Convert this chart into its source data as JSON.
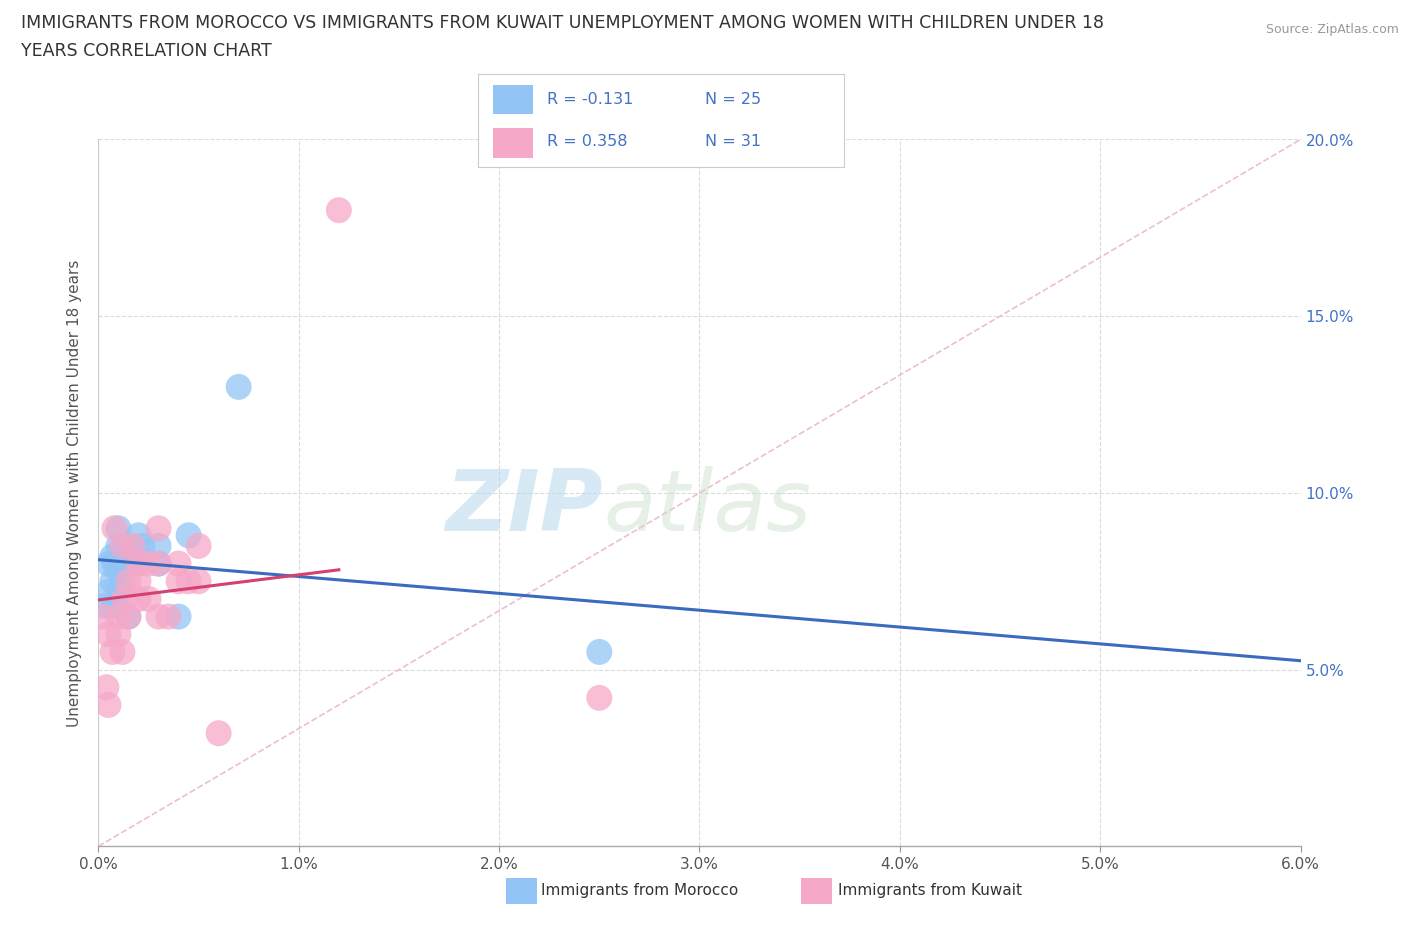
{
  "title_line1": "IMMIGRANTS FROM MOROCCO VS IMMIGRANTS FROM KUWAIT UNEMPLOYMENT AMONG WOMEN WITH CHILDREN UNDER 18",
  "title_line2": "YEARS CORRELATION CHART",
  "source": "Source: ZipAtlas.com",
  "ylabel": "Unemployment Among Women with Children Under 18 years",
  "xlabel_morocco": "Immigrants from Morocco",
  "xlabel_kuwait": "Immigrants from Kuwait",
  "xlim": [
    0.0,
    0.06
  ],
  "ylim": [
    0.0,
    0.2
  ],
  "xticks": [
    0.0,
    0.01,
    0.02,
    0.03,
    0.04,
    0.05,
    0.06
  ],
  "yticks": [
    0.0,
    0.05,
    0.1,
    0.15,
    0.2
  ],
  "xtick_labels": [
    "0.0%",
    "1.0%",
    "2.0%",
    "3.0%",
    "4.0%",
    "5.0%",
    "6.0%"
  ],
  "ytick_labels": [
    "",
    "5.0%",
    "10.0%",
    "15.0%",
    "20.0%"
  ],
  "legend_r_morocco": "R = -0.131",
  "legend_n_morocco": "N = 25",
  "legend_r_kuwait": "R = 0.358",
  "legend_n_kuwait": "N = 31",
  "color_morocco": "#92c5f5",
  "color_kuwait": "#f5a8c8",
  "trendline_morocco_color": "#3a6bbf",
  "trendline_kuwait_color": "#d44070",
  "ref_line_color": "#e8b0c0",
  "watermark_zip": "ZIP",
  "watermark_atlas": "atlas",
  "background_color": "#ffffff",
  "grid_color": "#cccccc",
  "morocco_x": [
    0.0003,
    0.0005,
    0.0005,
    0.0007,
    0.0007,
    0.0008,
    0.0008,
    0.001,
    0.001,
    0.001,
    0.001,
    0.0012,
    0.0013,
    0.0015,
    0.0015,
    0.0018,
    0.002,
    0.002,
    0.0022,
    0.003,
    0.003,
    0.004,
    0.0045,
    0.007,
    0.025
  ],
  "morocco_y": [
    0.068,
    0.072,
    0.08,
    0.075,
    0.082,
    0.068,
    0.08,
    0.072,
    0.078,
    0.085,
    0.09,
    0.075,
    0.085,
    0.065,
    0.082,
    0.08,
    0.082,
    0.088,
    0.085,
    0.08,
    0.085,
    0.065,
    0.088,
    0.13,
    0.055
  ],
  "kuwait_x": [
    0.0002,
    0.0004,
    0.0005,
    0.0005,
    0.0007,
    0.0008,
    0.001,
    0.001,
    0.0012,
    0.0012,
    0.0013,
    0.0015,
    0.0015,
    0.0017,
    0.002,
    0.002,
    0.002,
    0.0025,
    0.0025,
    0.003,
    0.003,
    0.003,
    0.0035,
    0.004,
    0.004,
    0.0045,
    0.005,
    0.005,
    0.006,
    0.012,
    0.025
  ],
  "kuwait_y": [
    0.065,
    0.045,
    0.06,
    0.04,
    0.055,
    0.09,
    0.06,
    0.065,
    0.085,
    0.055,
    0.07,
    0.075,
    0.065,
    0.085,
    0.07,
    0.075,
    0.08,
    0.07,
    0.08,
    0.065,
    0.08,
    0.09,
    0.065,
    0.075,
    0.08,
    0.075,
    0.075,
    0.085,
    0.032,
    0.18,
    0.042
  ]
}
